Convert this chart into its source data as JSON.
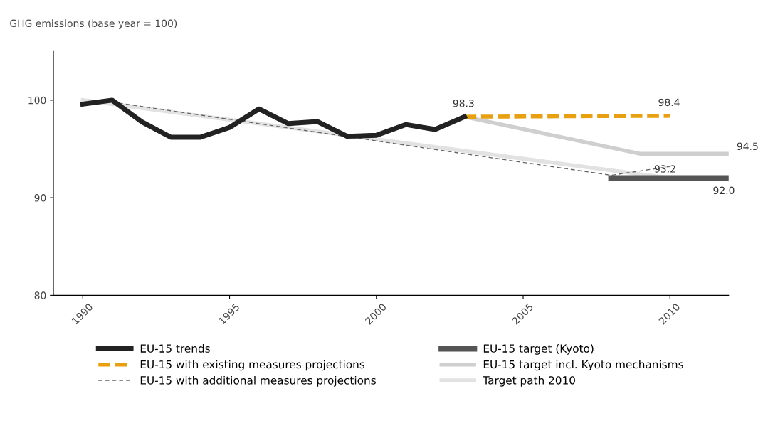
{
  "chart_data": {
    "type": "line",
    "ylabel": "GHG emissions (base year = 100)",
    "xlim": [
      1989,
      2012
    ],
    "xticks": [
      1990,
      1995,
      2000,
      2005,
      2010
    ],
    "ylim": [
      80,
      105
    ],
    "yticks": [
      80,
      90,
      100
    ],
    "grid": false,
    "legend": "bottom",
    "marker": "none",
    "series": [
      {
        "name": "EU-15 trends",
        "color": "#222222",
        "x": [
          1990,
          1991,
          1992,
          1993,
          1994,
          1995,
          1996,
          1997,
          1998,
          1999,
          2000,
          2001,
          2002,
          2003
        ],
        "values": [
          99.6,
          100,
          97.8,
          96.2,
          96.2,
          97.2,
          99.1,
          97.6,
          97.8,
          96.3,
          96.4,
          97.5,
          97.0,
          98.3
        ],
        "line_style": "solid"
      },
      {
        "name": "EU-15 with existing measures projections",
        "color": "#e8a010",
        "x": [
          2003,
          2010
        ],
        "values": [
          98.3,
          98.4
        ],
        "line_style": "dashed"
      },
      {
        "name": "EU-15 with additional measures projections",
        "color": "#666666",
        "x": [
          1991,
          2008,
          2010
        ],
        "values": [
          99.8,
          92.3,
          93.2
        ],
        "line_style": "dashed"
      },
      {
        "name": "EU-15 target (Kyoto)",
        "color": "#555555",
        "x": [
          2008,
          2012
        ],
        "values": [
          92.0,
          92.0
        ],
        "line_style": "solid"
      },
      {
        "name": "EU-15 target incl. Kyoto mechanisms",
        "color": "#cfcfcf",
        "x": [
          2003,
          2009,
          2012
        ],
        "values": [
          98.3,
          94.5,
          94.5
        ],
        "line_style": "solid"
      },
      {
        "name": "Target path 2010",
        "color": "#e2e2e2",
        "x": [
          1990,
          2010
        ],
        "values": [
          100,
          92.0
        ],
        "line_style": "solid"
      }
    ],
    "annotations": [
      {
        "text": "98.3",
        "x": 2003,
        "y": 98.3
      },
      {
        "text": "98.4",
        "x": 2010,
        "y": 98.4
      },
      {
        "text": "94.5",
        "x": 2012,
        "y": 94.5
      },
      {
        "text": "93.2",
        "x": 2010,
        "y": 93.2
      },
      {
        "text": "92.0",
        "x": 2012,
        "y": 92.0
      }
    ]
  }
}
